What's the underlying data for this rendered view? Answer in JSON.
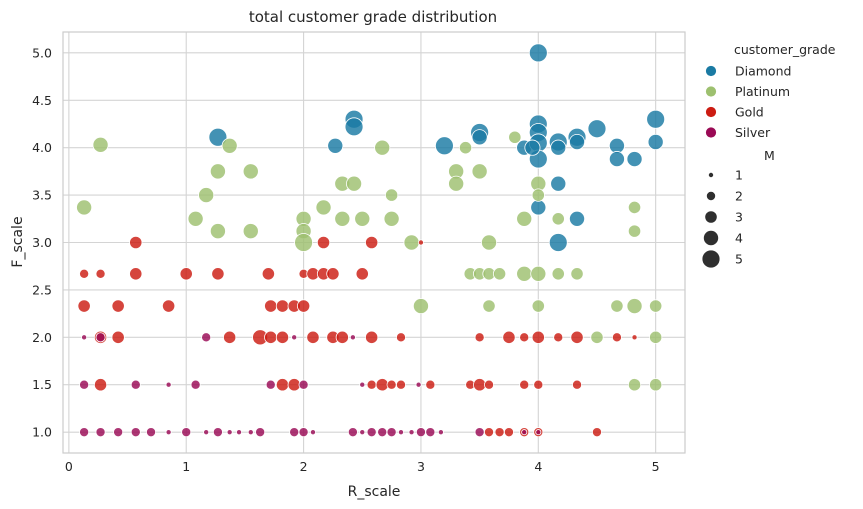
{
  "chart_data": {
    "type": "scatter",
    "title": "total customer grade distribution",
    "xlabel": "R_scale",
    "ylabel": "F_scale",
    "xlim": [
      -0.05,
      5.25
    ],
    "ylim": [
      0.78,
      5.22
    ],
    "xticks": [
      "0",
      "1",
      "2",
      "3",
      "4",
      "5"
    ],
    "yticks": [
      "1.0",
      "1.5",
      "2.0",
      "2.5",
      "3.0",
      "3.5",
      "4.0",
      "4.5",
      "5.0"
    ],
    "grid": true,
    "legend_position": "outside-right",
    "legend_hue_title": "customer_grade",
    "legend_size_title": "M",
    "size_levels": [
      "1",
      "2",
      "3",
      "4",
      "5"
    ],
    "colors": {
      "Diamond": "#1a7aa3",
      "Platinum": "#9dc06f",
      "Gold": "#cc1c12",
      "Silver": "#9a0a55"
    },
    "series": [
      {
        "name": "Diamond",
        "points": [
          [
            4.0,
            5.0,
            5
          ],
          [
            2.43,
            4.3,
            5
          ],
          [
            2.43,
            4.22,
            5
          ],
          [
            1.27,
            4.11,
            5
          ],
          [
            2.27,
            4.02,
            4
          ],
          [
            3.2,
            4.02,
            5
          ],
          [
            3.5,
            4.16,
            5
          ],
          [
            3.5,
            4.11,
            4
          ],
          [
            3.88,
            4.0,
            4
          ],
          [
            4.0,
            4.25,
            5
          ],
          [
            4.0,
            4.16,
            5
          ],
          [
            4.0,
            4.05,
            5
          ],
          [
            4.0,
            3.88,
            5
          ],
          [
            3.95,
            4.0,
            4
          ],
          [
            4.17,
            4.06,
            5
          ],
          [
            4.17,
            4.0,
            4
          ],
          [
            4.33,
            4.11,
            5
          ],
          [
            4.33,
            4.06,
            4
          ],
          [
            4.5,
            4.2,
            5
          ],
          [
            4.67,
            4.02,
            4
          ],
          [
            4.67,
            3.88,
            4
          ],
          [
            4.82,
            3.88,
            4
          ],
          [
            5.0,
            4.3,
            5
          ],
          [
            5.0,
            4.06,
            4
          ],
          [
            4.17,
            3.62,
            4
          ],
          [
            4.0,
            3.37,
            4
          ],
          [
            4.33,
            3.25,
            4
          ],
          [
            4.17,
            3.0,
            5
          ]
        ]
      },
      {
        "name": "Platinum",
        "points": [
          [
            0.27,
            4.03,
            4
          ],
          [
            0.13,
            3.37,
            4
          ],
          [
            1.37,
            4.02,
            4
          ],
          [
            1.17,
            3.5,
            4
          ],
          [
            1.27,
            3.75,
            4
          ],
          [
            1.55,
            3.75,
            4
          ],
          [
            1.08,
            3.25,
            4
          ],
          [
            1.27,
            3.12,
            4
          ],
          [
            1.55,
            3.12,
            4
          ],
          [
            2.0,
            3.25,
            4
          ],
          [
            2.0,
            3.12,
            4
          ],
          [
            2.0,
            3.0,
            5
          ],
          [
            2.17,
            3.37,
            4
          ],
          [
            2.33,
            3.62,
            4
          ],
          [
            2.43,
            3.62,
            4
          ],
          [
            2.33,
            3.25,
            4
          ],
          [
            2.5,
            3.25,
            4
          ],
          [
            2.67,
            4.0,
            4
          ],
          [
            2.75,
            3.5,
            3
          ],
          [
            2.75,
            3.25,
            4
          ],
          [
            2.92,
            3.0,
            4
          ],
          [
            3.0,
            2.33,
            4
          ],
          [
            3.3,
            3.75,
            4
          ],
          [
            3.3,
            3.62,
            4
          ],
          [
            3.38,
            4.0,
            3
          ],
          [
            3.42,
            2.67,
            3
          ],
          [
            3.5,
            3.75,
            4
          ],
          [
            3.5,
            2.67,
            3
          ],
          [
            3.58,
            2.67,
            3
          ],
          [
            3.58,
            3.0,
            4
          ],
          [
            3.58,
            2.33,
            3
          ],
          [
            3.67,
            2.67,
            3
          ],
          [
            3.8,
            4.11,
            3
          ],
          [
            3.88,
            3.25,
            4
          ],
          [
            3.88,
            2.67,
            4
          ],
          [
            4.0,
            3.62,
            4
          ],
          [
            4.0,
            3.5,
            3
          ],
          [
            4.0,
            2.67,
            4
          ],
          [
            4.0,
            2.33,
            3
          ],
          [
            4.17,
            3.25,
            3
          ],
          [
            4.17,
            2.67,
            3
          ],
          [
            4.33,
            2.67,
            3
          ],
          [
            4.5,
            2.0,
            3
          ],
          [
            4.67,
            2.33,
            3
          ],
          [
            4.82,
            2.33,
            4
          ],
          [
            4.82,
            3.37,
            3
          ],
          [
            4.82,
            3.12,
            3
          ],
          [
            4.82,
            1.5,
            3
          ],
          [
            5.0,
            2.33,
            3
          ],
          [
            5.0,
            2.0,
            3
          ],
          [
            5.0,
            1.5,
            3
          ]
        ]
      },
      {
        "name": "Gold",
        "points": [
          [
            0.13,
            2.67,
            2
          ],
          [
            0.27,
            2.67,
            2
          ],
          [
            0.13,
            2.33,
            3
          ],
          [
            0.57,
            3.0,
            3
          ],
          [
            0.57,
            2.67,
            3
          ],
          [
            1.0,
            2.67,
            3
          ],
          [
            1.27,
            2.67,
            3
          ],
          [
            0.42,
            2.33,
            3
          ],
          [
            0.85,
            2.33,
            3
          ],
          [
            1.7,
            2.67,
            3
          ],
          [
            1.72,
            2.33,
            3
          ],
          [
            1.82,
            2.33,
            3
          ],
          [
            1.92,
            2.33,
            3
          ],
          [
            2.0,
            2.33,
            3
          ],
          [
            2.0,
            2.67,
            2
          ],
          [
            2.08,
            2.67,
            3
          ],
          [
            2.17,
            3.0,
            3
          ],
          [
            2.17,
            2.67,
            3
          ],
          [
            2.25,
            2.67,
            3
          ],
          [
            2.5,
            2.67,
            3
          ],
          [
            2.58,
            3.0,
            3
          ],
          [
            3.0,
            3.0,
            1
          ],
          [
            0.27,
            2.0,
            3
          ],
          [
            0.42,
            2.0,
            3
          ],
          [
            1.37,
            2.0,
            3
          ],
          [
            1.63,
            2.0,
            4
          ],
          [
            1.72,
            2.0,
            3
          ],
          [
            1.82,
            2.0,
            3
          ],
          [
            2.08,
            2.0,
            3
          ],
          [
            2.25,
            2.0,
            3
          ],
          [
            2.33,
            2.0,
            3
          ],
          [
            2.58,
            2.0,
            3
          ],
          [
            2.83,
            2.0,
            2
          ],
          [
            3.5,
            2.0,
            2
          ],
          [
            3.75,
            2.0,
            3
          ],
          [
            3.88,
            2.0,
            2
          ],
          [
            4.0,
            2.0,
            3
          ],
          [
            4.17,
            2.0,
            2
          ],
          [
            4.33,
            2.0,
            3
          ],
          [
            4.67,
            2.0,
            2
          ],
          [
            4.82,
            2.0,
            1
          ],
          [
            0.27,
            1.5,
            3
          ],
          [
            1.82,
            1.5,
            3
          ],
          [
            1.92,
            1.5,
            3
          ],
          [
            2.58,
            1.5,
            2
          ],
          [
            2.67,
            1.5,
            3
          ],
          [
            2.75,
            1.5,
            2
          ],
          [
            2.83,
            1.5,
            2
          ],
          [
            3.08,
            1.5,
            2
          ],
          [
            3.42,
            1.5,
            2
          ],
          [
            3.5,
            1.5,
            3
          ],
          [
            3.58,
            1.5,
            2
          ],
          [
            3.88,
            1.5,
            2
          ],
          [
            4.0,
            1.5,
            2
          ],
          [
            4.33,
            1.5,
            2
          ],
          [
            3.58,
            1.0,
            2
          ],
          [
            3.67,
            1.0,
            2
          ],
          [
            3.75,
            1.0,
            2
          ],
          [
            3.88,
            1.0,
            2
          ],
          [
            4.0,
            1.0,
            2
          ],
          [
            4.5,
            1.0,
            2
          ]
        ]
      },
      {
        "name": "Silver",
        "points": [
          [
            0.13,
            2.0,
            1
          ],
          [
            0.27,
            2.0,
            2
          ],
          [
            1.17,
            2.0,
            2
          ],
          [
            1.92,
            2.0,
            1
          ],
          [
            2.42,
            2.0,
            1
          ],
          [
            0.13,
            1.5,
            2
          ],
          [
            0.57,
            1.5,
            2
          ],
          [
            0.85,
            1.5,
            1
          ],
          [
            1.08,
            1.5,
            2
          ],
          [
            1.72,
            1.5,
            2
          ],
          [
            2.0,
            1.5,
            2
          ],
          [
            2.5,
            1.5,
            1
          ],
          [
            2.98,
            1.5,
            1
          ],
          [
            0.13,
            1.0,
            2
          ],
          [
            0.27,
            1.0,
            2
          ],
          [
            0.42,
            1.0,
            2
          ],
          [
            0.57,
            1.0,
            2
          ],
          [
            0.7,
            1.0,
            2
          ],
          [
            0.85,
            1.0,
            1
          ],
          [
            1.0,
            1.0,
            2
          ],
          [
            1.17,
            1.0,
            1
          ],
          [
            1.27,
            1.0,
            2
          ],
          [
            1.37,
            1.0,
            1
          ],
          [
            1.45,
            1.0,
            1
          ],
          [
            1.55,
            1.0,
            1
          ],
          [
            1.63,
            1.0,
            2
          ],
          [
            1.92,
            1.0,
            2
          ],
          [
            2.0,
            1.0,
            2
          ],
          [
            2.08,
            1.0,
            1
          ],
          [
            2.42,
            1.0,
            2
          ],
          [
            2.5,
            1.0,
            1
          ],
          [
            2.58,
            1.0,
            2
          ],
          [
            2.67,
            1.0,
            2
          ],
          [
            2.75,
            1.0,
            2
          ],
          [
            2.83,
            1.0,
            1
          ],
          [
            2.92,
            1.0,
            1
          ],
          [
            3.0,
            1.0,
            2
          ],
          [
            3.08,
            1.0,
            2
          ],
          [
            3.17,
            1.0,
            1
          ],
          [
            3.5,
            1.0,
            2
          ],
          [
            3.88,
            1.0,
            1
          ],
          [
            4.0,
            1.0,
            1
          ]
        ]
      }
    ]
  }
}
